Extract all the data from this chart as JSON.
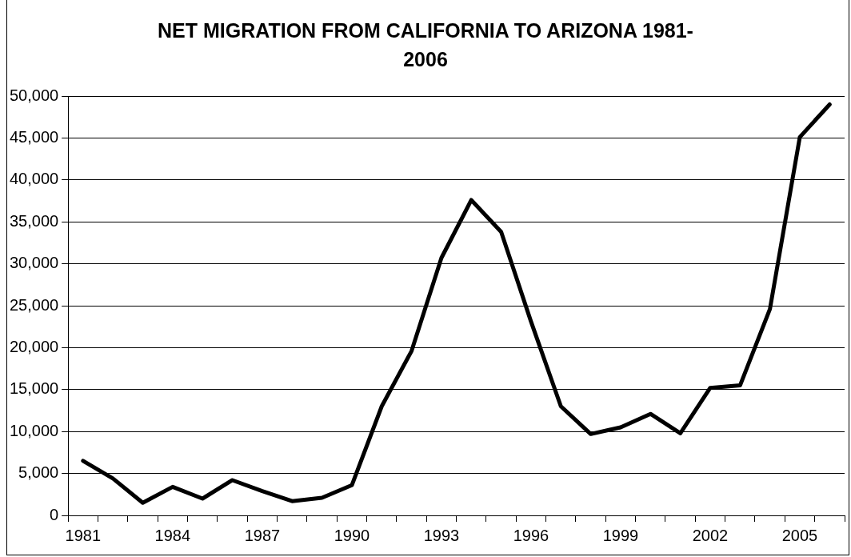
{
  "chart_data": {
    "type": "line",
    "title": "NET MIGRATION FROM CALIFORNIA TO ARIZONA 1981-2006",
    "categories": [
      "1981",
      null,
      null,
      "1984",
      null,
      null,
      "1987",
      null,
      null,
      "1990",
      null,
      null,
      "1993",
      null,
      null,
      "1996",
      null,
      null,
      "1999",
      null,
      null,
      "2002",
      null,
      null,
      "2005",
      null
    ],
    "series": [
      {
        "color": "#000000",
        "values": [
          6500,
          4400,
          1500,
          3400,
          2000,
          4200,
          2900,
          1700,
          2100,
          3600,
          13000,
          19600,
          30700,
          37600,
          33800,
          23100,
          13000,
          9700,
          10500,
          12100,
          9800,
          15200,
          15500,
          24600,
          45100,
          49000
        ]
      }
    ],
    "ylim": [
      0,
      50000
    ],
    "yticks": [
      {
        "value": 0,
        "label": "0"
      },
      {
        "value": 5000,
        "label": "5,000"
      },
      {
        "value": 10000,
        "label": "10,000"
      },
      {
        "value": 15000,
        "label": "15,000"
      },
      {
        "value": 20000,
        "label": "20,000"
      },
      {
        "value": 25000,
        "label": "25,000"
      },
      {
        "value": 30000,
        "label": "30,000"
      },
      {
        "value": 35000,
        "label": "35,000"
      },
      {
        "value": 40000,
        "label": "40,000"
      },
      {
        "value": 45000,
        "label": "45,000"
      },
      {
        "value": 50000,
        "label": "50,000"
      }
    ],
    "grid": "y",
    "legend": false,
    "marker": "none",
    "line_style": "solid"
  }
}
